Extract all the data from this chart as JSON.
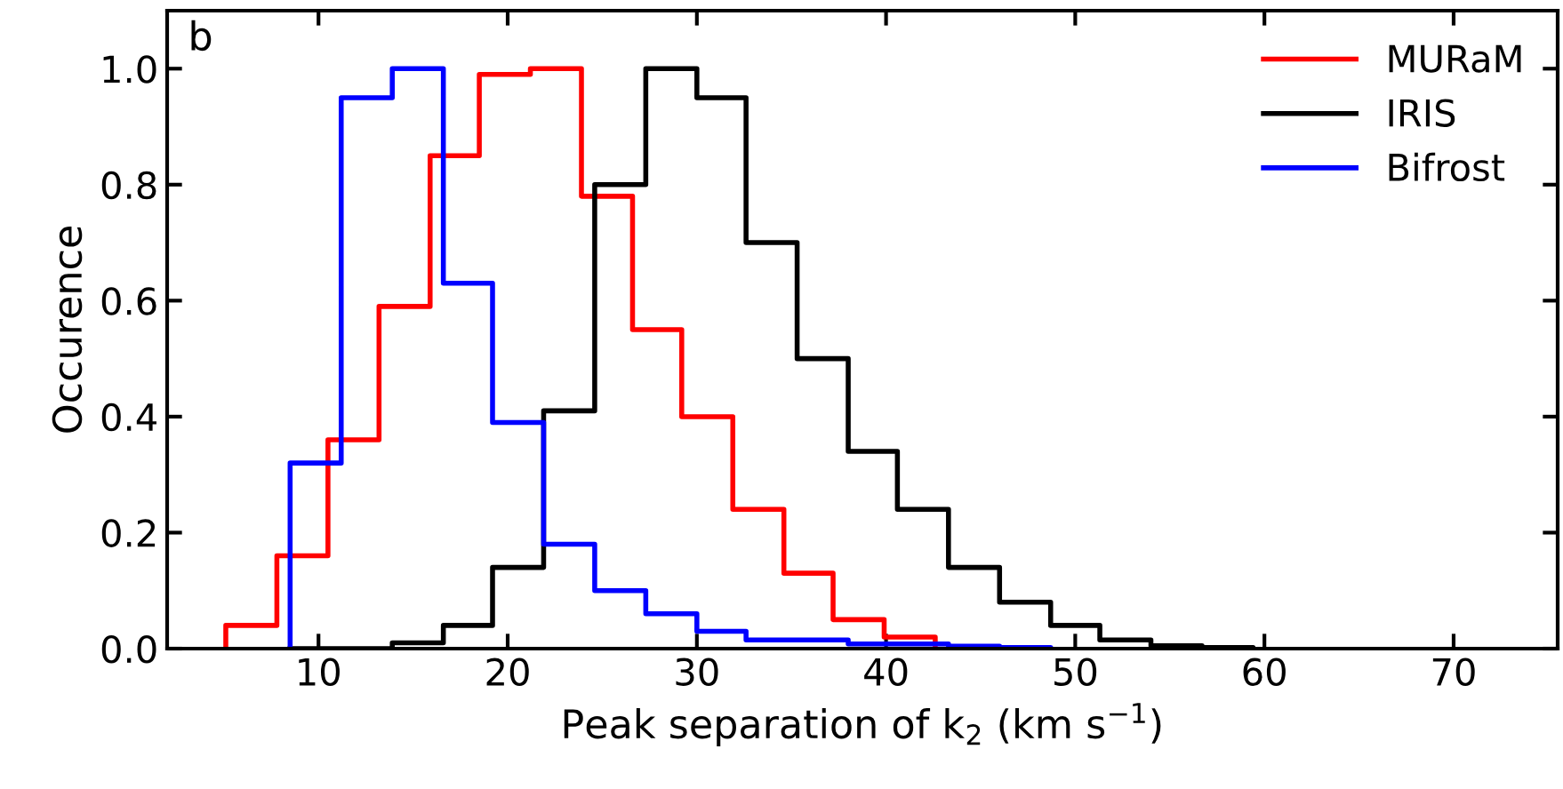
{
  "chart_data": {
    "type": "step",
    "xlabel": "Peak separation of k$_{2}$ (km s$^{−1}$)",
    "ylabel": "Occurence",
    "annotations": [
      "b"
    ],
    "xlim": [
      2,
      75.5
    ],
    "xticks": [
      10,
      20,
      30,
      40,
      50,
      60,
      70
    ],
    "ylim": [
      0,
      1.1
    ],
    "yticks": [
      {
        "value": 0,
        "label": "0.0"
      },
      {
        "value": 0.2,
        "label": "0.2"
      },
      {
        "value": 0.4,
        "label": "0.4"
      },
      {
        "value": 0.6,
        "label": "0.6"
      },
      {
        "value": 0.8,
        "label": "0.8"
      },
      {
        "value": 1.0,
        "label": "1.0"
      }
    ],
    "grid": false,
    "legend": "top right",
    "series": [
      {
        "name": "MURaM",
        "color": "#ff0000",
        "x": [
          5.1,
          5.1,
          7.8,
          10.5,
          13.2,
          15.9,
          18.5,
          21.2,
          23.9,
          26.6,
          29.2,
          31.9,
          34.6,
          37.2,
          39.9,
          42.6
        ],
        "values": [
          0,
          0.04,
          0.16,
          0.36,
          0.59,
          0.85,
          0.99,
          1.0,
          0.78,
          0.55,
          0.4,
          0.24,
          0.13,
          0.05,
          0.02,
          0
        ]
      },
      {
        "name": "IRIS",
        "color": "#000000",
        "x": [
          8.5,
          8.5,
          11.2,
          13.9,
          16.6,
          19.2,
          21.9,
          24.6,
          27.3,
          30.0,
          32.6,
          35.3,
          38.0,
          40.6,
          43.3,
          46.0,
          48.7,
          51.3,
          54.0,
          56.7,
          59.4
        ],
        "values": [
          0,
          0,
          0,
          0.01,
          0.04,
          0.14,
          0.41,
          0.8,
          1.0,
          0.95,
          0.7,
          0.5,
          0.34,
          0.24,
          0.14,
          0.08,
          0.04,
          0.015,
          0.005,
          0.002,
          0
        ]
      },
      {
        "name": "Bifrost",
        "color": "#0000ff",
        "x": [
          8.5,
          8.5,
          11.2,
          13.9,
          16.6,
          19.2,
          21.9,
          24.6,
          27.3,
          30.0,
          32.6,
          35.3,
          38.0,
          40.6,
          43.3,
          46.0,
          48.7
        ],
        "values": [
          0,
          0.32,
          0.95,
          1.0,
          0.63,
          0.39,
          0.18,
          0.1,
          0.06,
          0.03,
          0.015,
          0.015,
          0.008,
          0.008,
          0.004,
          0.002,
          0
        ]
      }
    ]
  }
}
